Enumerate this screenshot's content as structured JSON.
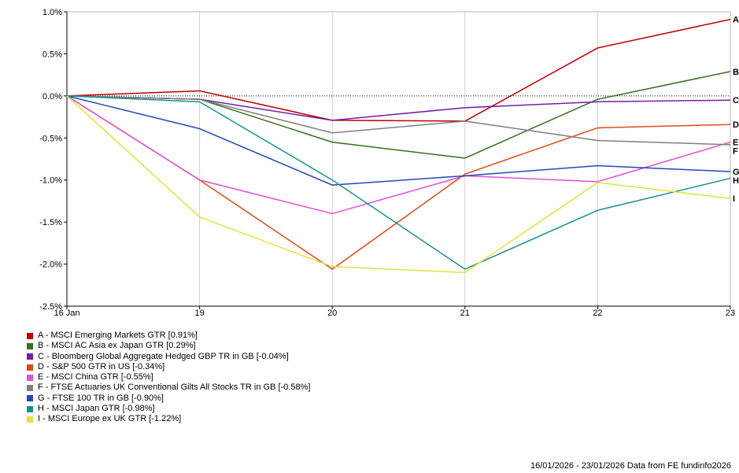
{
  "chart_data": {
    "type": "line",
    "x": [
      "16 Jan",
      "19",
      "20",
      "21",
      "22",
      "23"
    ],
    "ylim": [
      -2.5,
      1.0
    ],
    "yticks": [
      "1.0%",
      "0.5%",
      "0.0%",
      "-0.5%",
      "-1.0%",
      "-1.5%",
      "-2.0%",
      "-2.5%"
    ],
    "ytick_values": [
      1.0,
      0.5,
      0.0,
      -0.5,
      -1.0,
      -1.5,
      -2.0,
      -2.5
    ],
    "grid": "vertical",
    "zero_line": "dotted",
    "series": [
      {
        "letter": "A",
        "name": "A - MSCI Emerging Markets GTR [0.91%]",
        "color": "#c00000",
        "values": [
          0,
          0.06,
          -0.29,
          -0.3,
          0.57,
          0.91
        ]
      },
      {
        "letter": "B",
        "name": "B - MSCI AC Asia ex Japan GTR [0.29%]",
        "color": "#3a6e1b",
        "values": [
          0,
          -0.04,
          -0.55,
          -0.74,
          -0.04,
          0.29
        ]
      },
      {
        "letter": "C",
        "name": "C - Bloomberg Global Aggregate Hedged GBP TR in GB [-0.04%]",
        "color": "#7020a8",
        "values": [
          0,
          -0.04,
          -0.29,
          -0.14,
          -0.07,
          -0.05
        ]
      },
      {
        "letter": "D",
        "name": "D - S&P 500 GTR in US [-0.34%]",
        "color": "#e04a1a",
        "values": [
          0,
          -1.0,
          -2.06,
          -0.93,
          -0.38,
          -0.34
        ]
      },
      {
        "letter": "E",
        "name": "E - MSCI China GTR [-0.55%]",
        "color": "#e050d8",
        "values": [
          0,
          -1.0,
          -1.4,
          -0.95,
          -1.02,
          -0.55
        ]
      },
      {
        "letter": "F",
        "name": "F - FTSE Actuaries UK Conventional Gilts All Stocks TR in GB [-0.58%]",
        "color": "#808080",
        "values": [
          0,
          -0.04,
          -0.44,
          -0.3,
          -0.53,
          -0.58
        ]
      },
      {
        "letter": "G",
        "name": "G - FTSE 100 TR in GB [-0.90%]",
        "color": "#2448b8",
        "values": [
          0,
          -0.39,
          -1.06,
          -0.95,
          -0.83,
          -0.9
        ]
      },
      {
        "letter": "H",
        "name": "H - MSCI Japan GTR [-0.98%]",
        "color": "#1a9090",
        "values": [
          0,
          -0.07,
          -1.0,
          -2.06,
          -1.36,
          -0.98
        ]
      },
      {
        "letter": "I",
        "name": "I - MSCI Europe ex UK GTR [-1.22%]",
        "color": "#e4e040",
        "values": [
          0,
          -1.44,
          -2.03,
          -2.1,
          -1.03,
          -1.22
        ]
      }
    ]
  },
  "footer": "16/01/2026 - 23/01/2026 Data from FE fundinfo2026"
}
